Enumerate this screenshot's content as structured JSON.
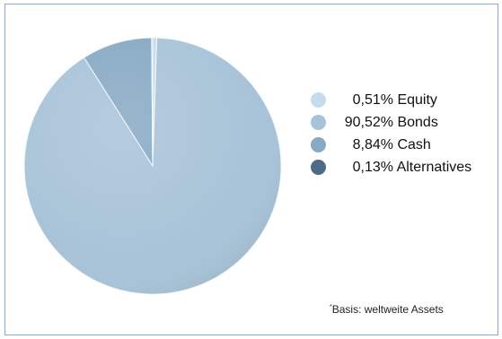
{
  "chart_data": {
    "type": "pie",
    "title": "",
    "categories": [
      "Equity",
      "Bonds",
      "Cash",
      "Alternatives"
    ],
    "values": [
      0.51,
      90.52,
      8.84,
      0.13
    ],
    "percent_labels": [
      "0,51%",
      "90,52%",
      "8,84%",
      "0,13%"
    ],
    "colors": [
      "#c3dcee",
      "#a8c3d8",
      "#87a9c4",
      "#4b6b88"
    ],
    "start_angle_deg": 0,
    "direction": "clockwise",
    "legend_position": "right"
  },
  "footnote": {
    "marker": "*",
    "text": "Basis: weltweite Assets"
  }
}
